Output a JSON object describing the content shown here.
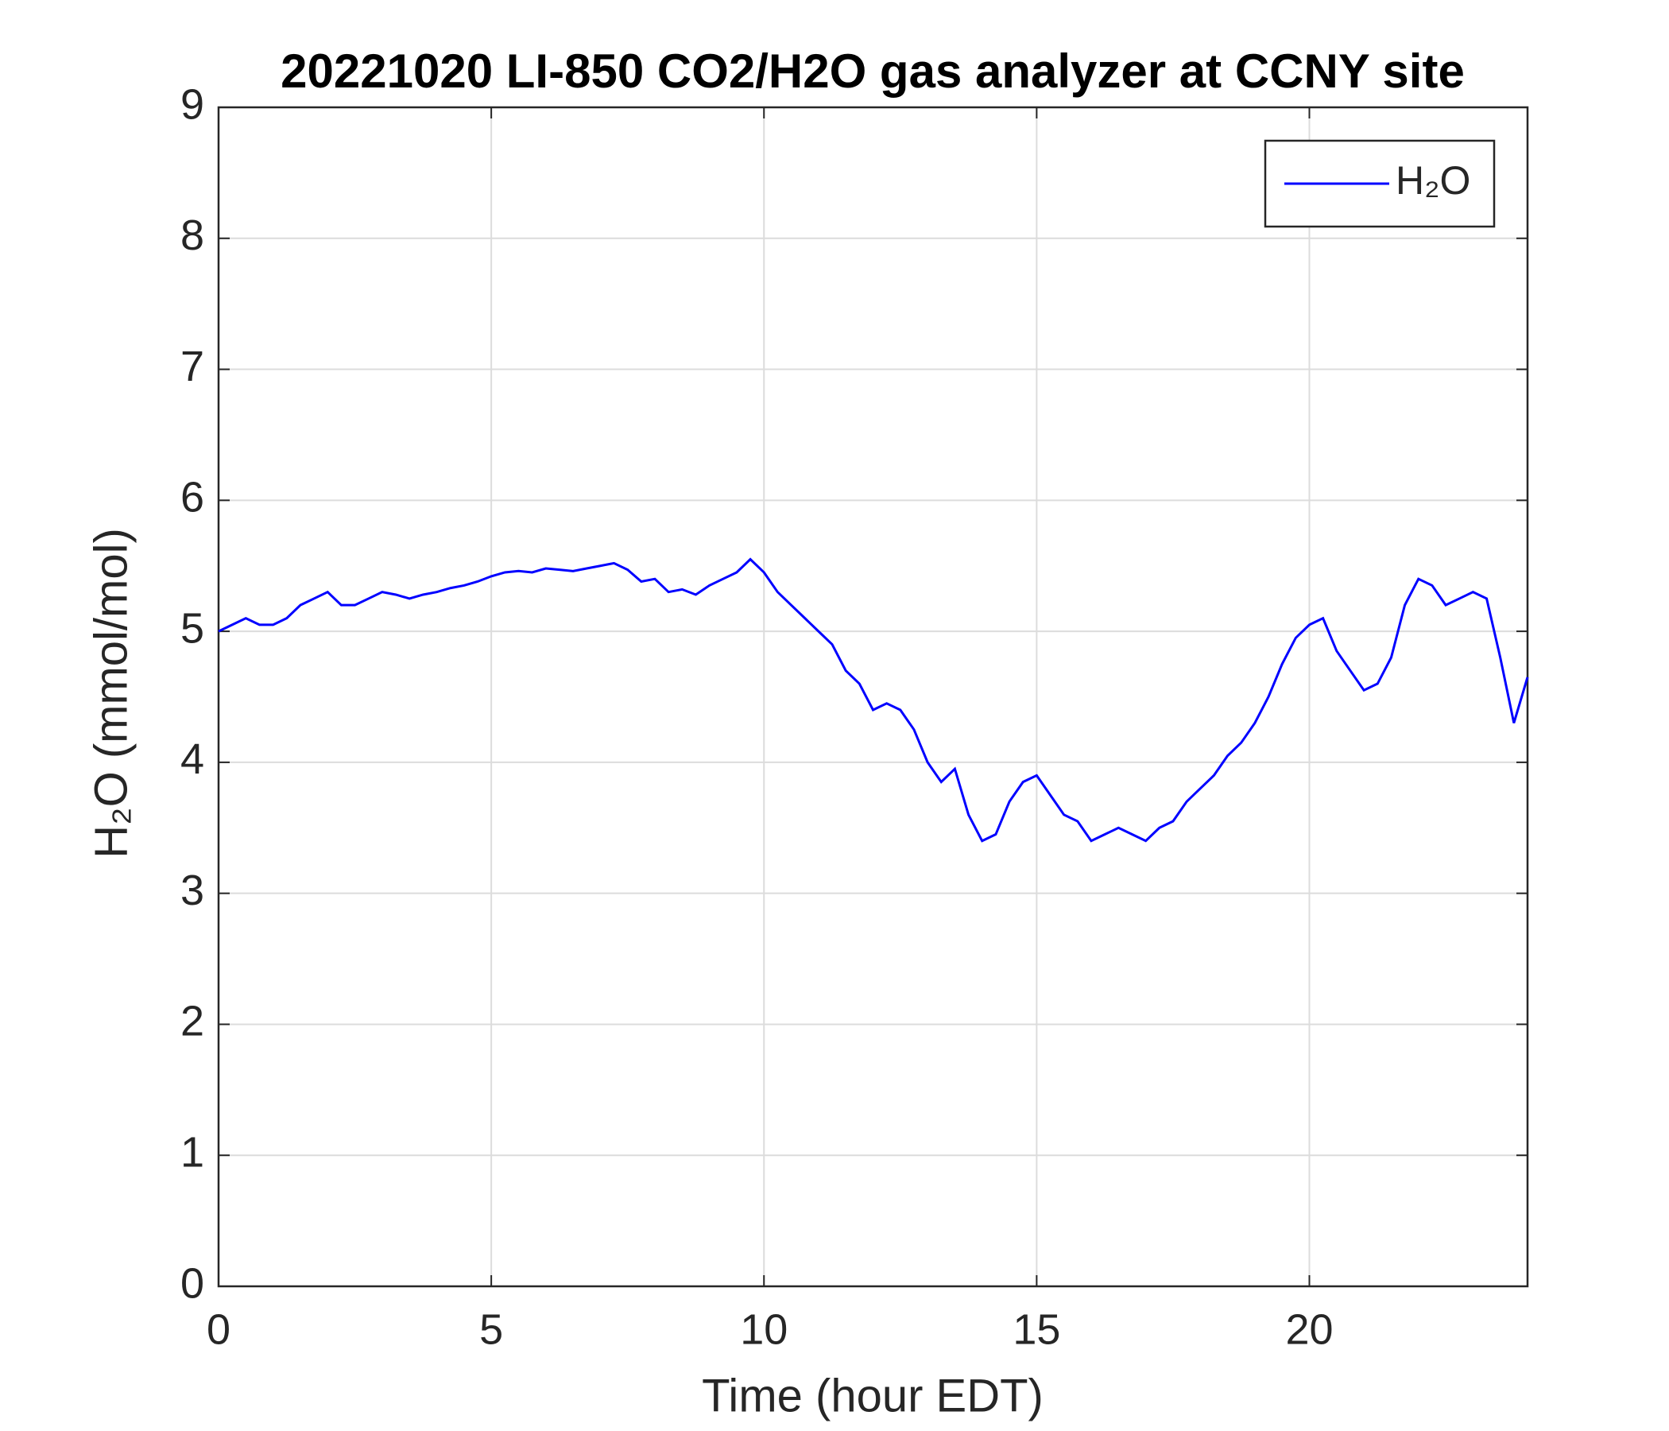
{
  "chart_data": {
    "type": "line",
    "title": "20221020 LI-850 CO2/H2O gas analyzer at CCNY site",
    "x_label": "Time (hour EDT)",
    "y_label": "H₂O (mmol/mol)",
    "xlim": [
      0,
      24
    ],
    "xticks": [
      0,
      5,
      10,
      15,
      20
    ],
    "ylim": [
      0,
      9
    ],
    "yticks": [
      0,
      1,
      2,
      3,
      4,
      5,
      6,
      7,
      8,
      9
    ],
    "grid": true,
    "legend": "northeast",
    "x": [
      0,
      0.25,
      0.5,
      0.75,
      1,
      1.25,
      1.5,
      1.75,
      2,
      2.25,
      2.5,
      2.75,
      3,
      3.25,
      3.5,
      3.75,
      4,
      4.25,
      4.5,
      4.75,
      5,
      5.25,
      5.5,
      5.75,
      6,
      6.25,
      6.5,
      6.75,
      7,
      7.25,
      7.5,
      7.75,
      8,
      8.25,
      8.5,
      8.75,
      9,
      9.25,
      9.5,
      9.75,
      10,
      10.25,
      10.5,
      10.75,
      11,
      11.25,
      11.5,
      11.75,
      12,
      12.25,
      12.5,
      12.75,
      13,
      13.25,
      13.5,
      13.75,
      14,
      14.25,
      14.5,
      14.75,
      15,
      15.25,
      15.5,
      15.75,
      16,
      16.25,
      16.5,
      16.75,
      17,
      17.25,
      17.5,
      17.75,
      18,
      18.25,
      18.5,
      18.75,
      19,
      19.25,
      19.5,
      19.75,
      20,
      20.25,
      20.5,
      20.75,
      21,
      21.25,
      21.5,
      21.75,
      22,
      22.25,
      22.5,
      22.75,
      23,
      23.25,
      23.5,
      23.75,
      24
    ],
    "series": [
      {
        "name": "H₂O",
        "color": "#0000ff",
        "values": [
          5.0,
          5.05,
          5.1,
          5.05,
          5.05,
          5.1,
          5.2,
          5.25,
          5.3,
          5.2,
          5.2,
          5.25,
          5.3,
          5.28,
          5.25,
          5.28,
          5.3,
          5.33,
          5.35,
          5.38,
          5.42,
          5.45,
          5.46,
          5.45,
          5.48,
          5.47,
          5.46,
          5.48,
          5.5,
          5.52,
          5.47,
          5.38,
          5.4,
          5.3,
          5.32,
          5.28,
          5.35,
          5.4,
          5.45,
          5.55,
          5.45,
          5.3,
          5.2,
          5.1,
          5.0,
          4.9,
          4.7,
          4.6,
          4.4,
          4.45,
          4.4,
          4.25,
          4.0,
          3.85,
          3.95,
          3.6,
          3.4,
          3.45,
          3.7,
          3.85,
          3.9,
          3.75,
          3.6,
          3.55,
          3.4,
          3.45,
          3.5,
          3.45,
          3.4,
          3.5,
          3.55,
          3.7,
          3.8,
          3.9,
          4.05,
          4.15,
          4.3,
          4.5,
          4.75,
          4.95,
          5.05,
          5.1,
          4.85,
          4.7,
          4.55,
          4.6,
          4.8,
          5.2,
          5.4,
          5.35,
          5.2,
          5.25,
          5.3,
          5.25,
          4.8,
          4.3,
          4.65
        ]
      }
    ]
  }
}
